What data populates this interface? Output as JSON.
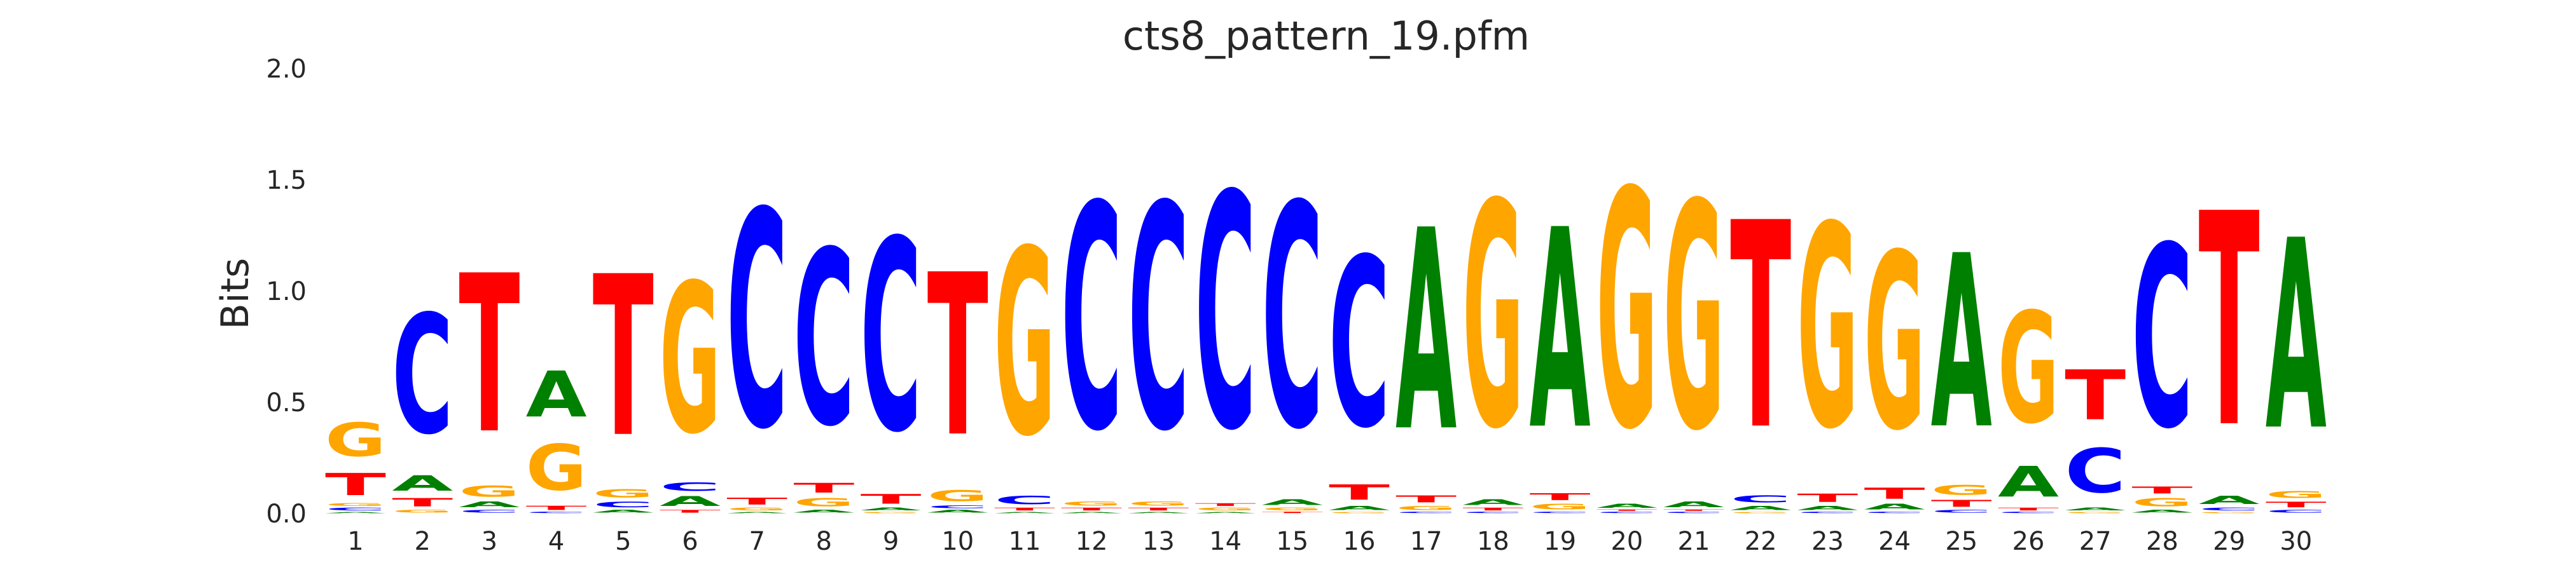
{
  "chart_data": {
    "type": "sequence-logo",
    "title": "cts8_pattern_19.pfm",
    "xlabel": "",
    "ylabel": "Bits",
    "ylim": [
      0,
      2.0
    ],
    "yticks": [
      "0.0",
      "0.5",
      "1.0",
      "1.5",
      "2.0"
    ],
    "categories": [
      "1",
      "2",
      "3",
      "4",
      "5",
      "6",
      "7",
      "8",
      "9",
      "10",
      "11",
      "12",
      "13",
      "14",
      "15",
      "16",
      "17",
      "18",
      "19",
      "20",
      "21",
      "22",
      "23",
      "24",
      "25",
      "26",
      "27",
      "28",
      "29",
      "30"
    ],
    "grid": false,
    "colors": {
      "A": "#008000",
      "C": "#0000ff",
      "G": "#ffa500",
      "T": "#ff0000"
    },
    "positions": [
      {
        "pos": 1,
        "stack": [
          [
            "A",
            0.01
          ],
          [
            "C",
            0.02
          ],
          [
            "G",
            0.02
          ],
          [
            "T",
            0.16
          ],
          [
            "G",
            0.24
          ]
        ]
      },
      {
        "pos": 2,
        "stack": [
          [
            "G",
            0.02
          ],
          [
            "T",
            0.06
          ],
          [
            "A",
            0.11
          ],
          [
            "C",
            0.86
          ]
        ]
      },
      {
        "pos": 3,
        "stack": [
          [
            "C",
            0.02
          ],
          [
            "A",
            0.04
          ],
          [
            "G",
            0.08
          ],
          [
            "T",
            1.14
          ]
        ]
      },
      {
        "pos": 4,
        "stack": [
          [
            "C",
            0.01
          ],
          [
            "T",
            0.03
          ],
          [
            "G",
            0.33
          ],
          [
            "A",
            0.33
          ]
        ]
      },
      {
        "pos": 5,
        "stack": [
          [
            "A",
            0.02
          ],
          [
            "C",
            0.04
          ],
          [
            "G",
            0.06
          ],
          [
            "T",
            1.16
          ]
        ]
      },
      {
        "pos": 6,
        "stack": [
          [
            "T",
            0.02
          ],
          [
            "A",
            0.07
          ],
          [
            "C",
            0.06
          ],
          [
            "G",
            1.08
          ]
        ]
      },
      {
        "pos": 7,
        "stack": [
          [
            "A",
            0.01
          ],
          [
            "G",
            0.02
          ],
          [
            "T",
            0.05
          ],
          [
            "C",
            1.56
          ]
        ]
      },
      {
        "pos": 8,
        "stack": [
          [
            "A",
            0.02
          ],
          [
            "G",
            0.06
          ],
          [
            "T",
            0.07
          ],
          [
            "C",
            1.26
          ]
        ]
      },
      {
        "pos": 9,
        "stack": [
          [
            "G",
            0.01
          ],
          [
            "A",
            0.02
          ],
          [
            "T",
            0.07
          ],
          [
            "C",
            1.38
          ]
        ]
      },
      {
        "pos": 10,
        "stack": [
          [
            "A",
            0.02
          ],
          [
            "C",
            0.02
          ],
          [
            "G",
            0.08
          ],
          [
            "T",
            1.17
          ]
        ]
      },
      {
        "pos": 11,
        "stack": [
          [
            "A",
            0.01
          ],
          [
            "T",
            0.02
          ],
          [
            "C",
            0.06
          ],
          [
            "G",
            1.34
          ]
        ]
      },
      {
        "pos": 12,
        "stack": [
          [
            "A",
            0.01
          ],
          [
            "T",
            0.02
          ],
          [
            "G",
            0.03
          ],
          [
            "C",
            1.62
          ]
        ]
      },
      {
        "pos": 13,
        "stack": [
          [
            "A",
            0.01
          ],
          [
            "T",
            0.02
          ],
          [
            "G",
            0.03
          ],
          [
            "C",
            1.62
          ]
        ]
      },
      {
        "pos": 14,
        "stack": [
          [
            "A",
            0.01
          ],
          [
            "G",
            0.02
          ],
          [
            "T",
            0.02
          ],
          [
            "C",
            1.69
          ]
        ]
      },
      {
        "pos": 15,
        "stack": [
          [
            "T",
            0.01
          ],
          [
            "G",
            0.02
          ],
          [
            "A",
            0.04
          ],
          [
            "C",
            1.61
          ]
        ]
      },
      {
        "pos": 16,
        "stack": [
          [
            "G",
            0.01
          ],
          [
            "A",
            0.03
          ],
          [
            "T",
            0.11
          ],
          [
            "C",
            1.22
          ]
        ]
      },
      {
        "pos": 17,
        "stack": [
          [
            "C",
            0.01
          ],
          [
            "G",
            0.03
          ],
          [
            "T",
            0.05
          ],
          [
            "A",
            1.45
          ]
        ]
      },
      {
        "pos": 18,
        "stack": [
          [
            "C",
            0.01
          ],
          [
            "T",
            0.02
          ],
          [
            "A",
            0.04
          ],
          [
            "G",
            1.62
          ]
        ]
      },
      {
        "pos": 19,
        "stack": [
          [
            "C",
            0.01
          ],
          [
            "G",
            0.04
          ],
          [
            "T",
            0.05
          ],
          [
            "A",
            1.44
          ]
        ]
      },
      {
        "pos": 20,
        "stack": [
          [
            "C",
            0.01
          ],
          [
            "T",
            0.01
          ],
          [
            "A",
            0.03
          ],
          [
            "G",
            1.71
          ]
        ]
      },
      {
        "pos": 21,
        "stack": [
          [
            "C",
            0.01
          ],
          [
            "T",
            0.01
          ],
          [
            "A",
            0.04
          ],
          [
            "G",
            1.63
          ]
        ]
      },
      {
        "pos": 22,
        "stack": [
          [
            "G",
            0.01
          ],
          [
            "A",
            0.03
          ],
          [
            "C",
            0.05
          ],
          [
            "T",
            1.49
          ]
        ]
      },
      {
        "pos": 23,
        "stack": [
          [
            "C",
            0.01
          ],
          [
            "A",
            0.03
          ],
          [
            "T",
            0.06
          ],
          [
            "G",
            1.46
          ]
        ]
      },
      {
        "pos": 24,
        "stack": [
          [
            "C",
            0.01
          ],
          [
            "A",
            0.04
          ],
          [
            "T",
            0.08
          ],
          [
            "G",
            1.27
          ]
        ]
      },
      {
        "pos": 25,
        "stack": [
          [
            "C",
            0.02
          ],
          [
            "T",
            0.05
          ],
          [
            "G",
            0.07
          ],
          [
            "A",
            1.25
          ]
        ]
      },
      {
        "pos": 26,
        "stack": [
          [
            "C",
            0.01
          ],
          [
            "T",
            0.02
          ],
          [
            "A",
            0.22
          ],
          [
            "G",
            0.8
          ]
        ]
      },
      {
        "pos": 27,
        "stack": [
          [
            "G",
            0.01
          ],
          [
            "A",
            0.02
          ],
          [
            "C",
            0.32
          ],
          [
            "T",
            0.36
          ]
        ]
      },
      {
        "pos": 28,
        "stack": [
          [
            "A",
            0.02
          ],
          [
            "G",
            0.06
          ],
          [
            "T",
            0.05
          ],
          [
            "C",
            1.31
          ]
        ]
      },
      {
        "pos": 29,
        "stack": [
          [
            "G",
            0.01
          ],
          [
            "C",
            0.02
          ],
          [
            "A",
            0.06
          ],
          [
            "T",
            1.54
          ]
        ]
      },
      {
        "pos": 30,
        "stack": [
          [
            "C",
            0.02
          ],
          [
            "T",
            0.04
          ],
          [
            "G",
            0.05
          ],
          [
            "A",
            1.37
          ]
        ]
      }
    ]
  }
}
